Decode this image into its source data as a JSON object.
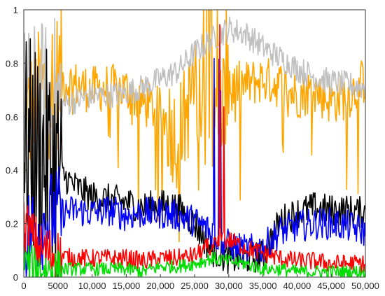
{
  "chart_data": {
    "type": "line",
    "title": "",
    "xlabel": "",
    "ylabel": "",
    "xlim": [
      0,
      50000
    ],
    "ylim": [
      0,
      1
    ],
    "grid": false,
    "legend": "none",
    "x_ticks": [
      0,
      5000,
      10000,
      15000,
      20000,
      25000,
      30000,
      35000,
      40000,
      45000,
      50000
    ],
    "x_tick_labels": [
      "0",
      "5000",
      "10,000",
      "15,000",
      "20,000",
      "25,000",
      "30,000",
      "35,000",
      "40,000",
      "45,000",
      "50,000"
    ],
    "y_ticks": [
      0,
      0.2,
      0.4,
      0.6,
      0.8,
      1
    ],
    "y_tick_labels": [
      "0",
      "0.2",
      "0.4",
      "0.6",
      "0.8",
      "1"
    ],
    "series": [
      {
        "color": "#ffa500",
        "x": [
          0,
          2500,
          5000,
          7500,
          10000,
          12500,
          15000,
          17500,
          20000,
          22500,
          25000,
          27500,
          30000,
          32500,
          35000,
          37500,
          40000,
          42500,
          45000,
          47500,
          50000
        ],
        "values": [
          0.55,
          0.68,
          0.74,
          0.72,
          0.7,
          0.71,
          0.7,
          0.65,
          0.62,
          0.52,
          0.7,
          0.55,
          0.72,
          0.72,
          0.74,
          0.72,
          0.68,
          0.7,
          0.66,
          0.68,
          0.74
        ],
        "amplitude": 0.09
      },
      {
        "color": "#c0c0c0",
        "x": [
          0,
          2500,
          5000,
          7500,
          10000,
          12500,
          15000,
          17500,
          20000,
          22500,
          25000,
          27500,
          30000,
          32500,
          35000,
          37500,
          40000,
          42500,
          45000,
          47500,
          50000
        ],
        "values": [
          0.6,
          0.62,
          0.64,
          0.66,
          0.68,
          0.68,
          0.69,
          0.71,
          0.74,
          0.77,
          0.84,
          0.89,
          0.93,
          0.91,
          0.86,
          0.82,
          0.78,
          0.75,
          0.73,
          0.72,
          0.71
        ],
        "amplitude": 0.05
      },
      {
        "color": "#000000",
        "x": [
          0,
          2500,
          5000,
          7500,
          10000,
          12500,
          15000,
          17500,
          20000,
          22500,
          25000,
          27500,
          30000,
          32500,
          35000,
          37500,
          40000,
          42500,
          45000,
          47500,
          50000
        ],
        "values": [
          0.5,
          0.45,
          0.4,
          0.34,
          0.3,
          0.29,
          0.28,
          0.26,
          0.27,
          0.26,
          0.2,
          0.1,
          0.07,
          0.07,
          0.08,
          0.21,
          0.24,
          0.26,
          0.25,
          0.25,
          0.24
        ],
        "amplitude": 0.06
      },
      {
        "color": "#0000ff",
        "x": [
          0,
          2500,
          5000,
          7500,
          10000,
          12500,
          15000,
          17500,
          20000,
          22500,
          25000,
          27500,
          30000,
          32500,
          35000,
          37500,
          40000,
          42500,
          45000,
          47500,
          50000
        ],
        "values": [
          0.15,
          0.2,
          0.24,
          0.25,
          0.24,
          0.25,
          0.23,
          0.24,
          0.24,
          0.23,
          0.21,
          0.17,
          0.12,
          0.1,
          0.11,
          0.17,
          0.19,
          0.2,
          0.2,
          0.19,
          0.17
        ],
        "amplitude": 0.06
      },
      {
        "color": "#ff0000",
        "x": [
          0,
          2500,
          5000,
          7500,
          10000,
          12500,
          15000,
          17500,
          20000,
          22500,
          25000,
          27500,
          30000,
          32500,
          35000,
          37500,
          40000,
          42500,
          45000,
          47500,
          50000
        ],
        "values": [
          0.2,
          0.1,
          0.08,
          0.07,
          0.07,
          0.07,
          0.07,
          0.06,
          0.07,
          0.07,
          0.08,
          0.12,
          0.14,
          0.11,
          0.09,
          0.07,
          0.06,
          0.06,
          0.05,
          0.05,
          0.05
        ],
        "amplitude": 0.035
      },
      {
        "color": "#00dd00",
        "x": [
          0,
          2500,
          5000,
          7500,
          10000,
          12500,
          15000,
          17500,
          20000,
          22500,
          25000,
          27500,
          30000,
          32500,
          35000,
          37500,
          40000,
          42500,
          45000,
          47500,
          50000
        ],
        "values": [
          0.06,
          0.03,
          0.03,
          0.03,
          0.03,
          0.03,
          0.03,
          0.02,
          0.04,
          0.04,
          0.05,
          0.07,
          0.06,
          0.05,
          0.03,
          0.03,
          0.02,
          0.02,
          0.02,
          0.02,
          0.02
        ],
        "amplitude": 0.025
      }
    ]
  }
}
